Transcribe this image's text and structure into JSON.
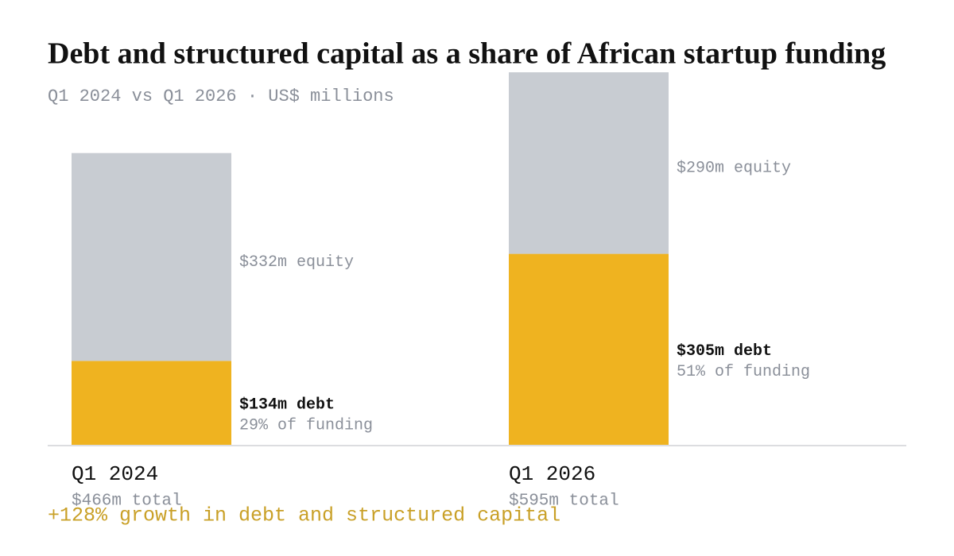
{
  "chart_data": {
    "type": "stacked_bar",
    "title": "Debt and structured capital as a share of African startup funding",
    "subtitle": "Q1 2024 vs Q1 2026 · US$ millions",
    "categories": [
      "Q1 2024",
      "Q1 2026"
    ],
    "series": [
      {
        "color": "#efb320",
        "values": [
          134,
          305
        ],
        "value_labels": [
          "$134m debt",
          "$305m debt"
        ],
        "share_labels": [
          "29% of funding",
          "51% of funding"
        ]
      },
      {
        "color": "#c8ccd2",
        "values": [
          332,
          290
        ],
        "value_labels": [
          "$332m equity",
          "$290m equity"
        ]
      }
    ],
    "total_labels": [
      "$466m total",
      "$595m total"
    ],
    "annotation": "+128% growth in debt and structured capital"
  }
}
